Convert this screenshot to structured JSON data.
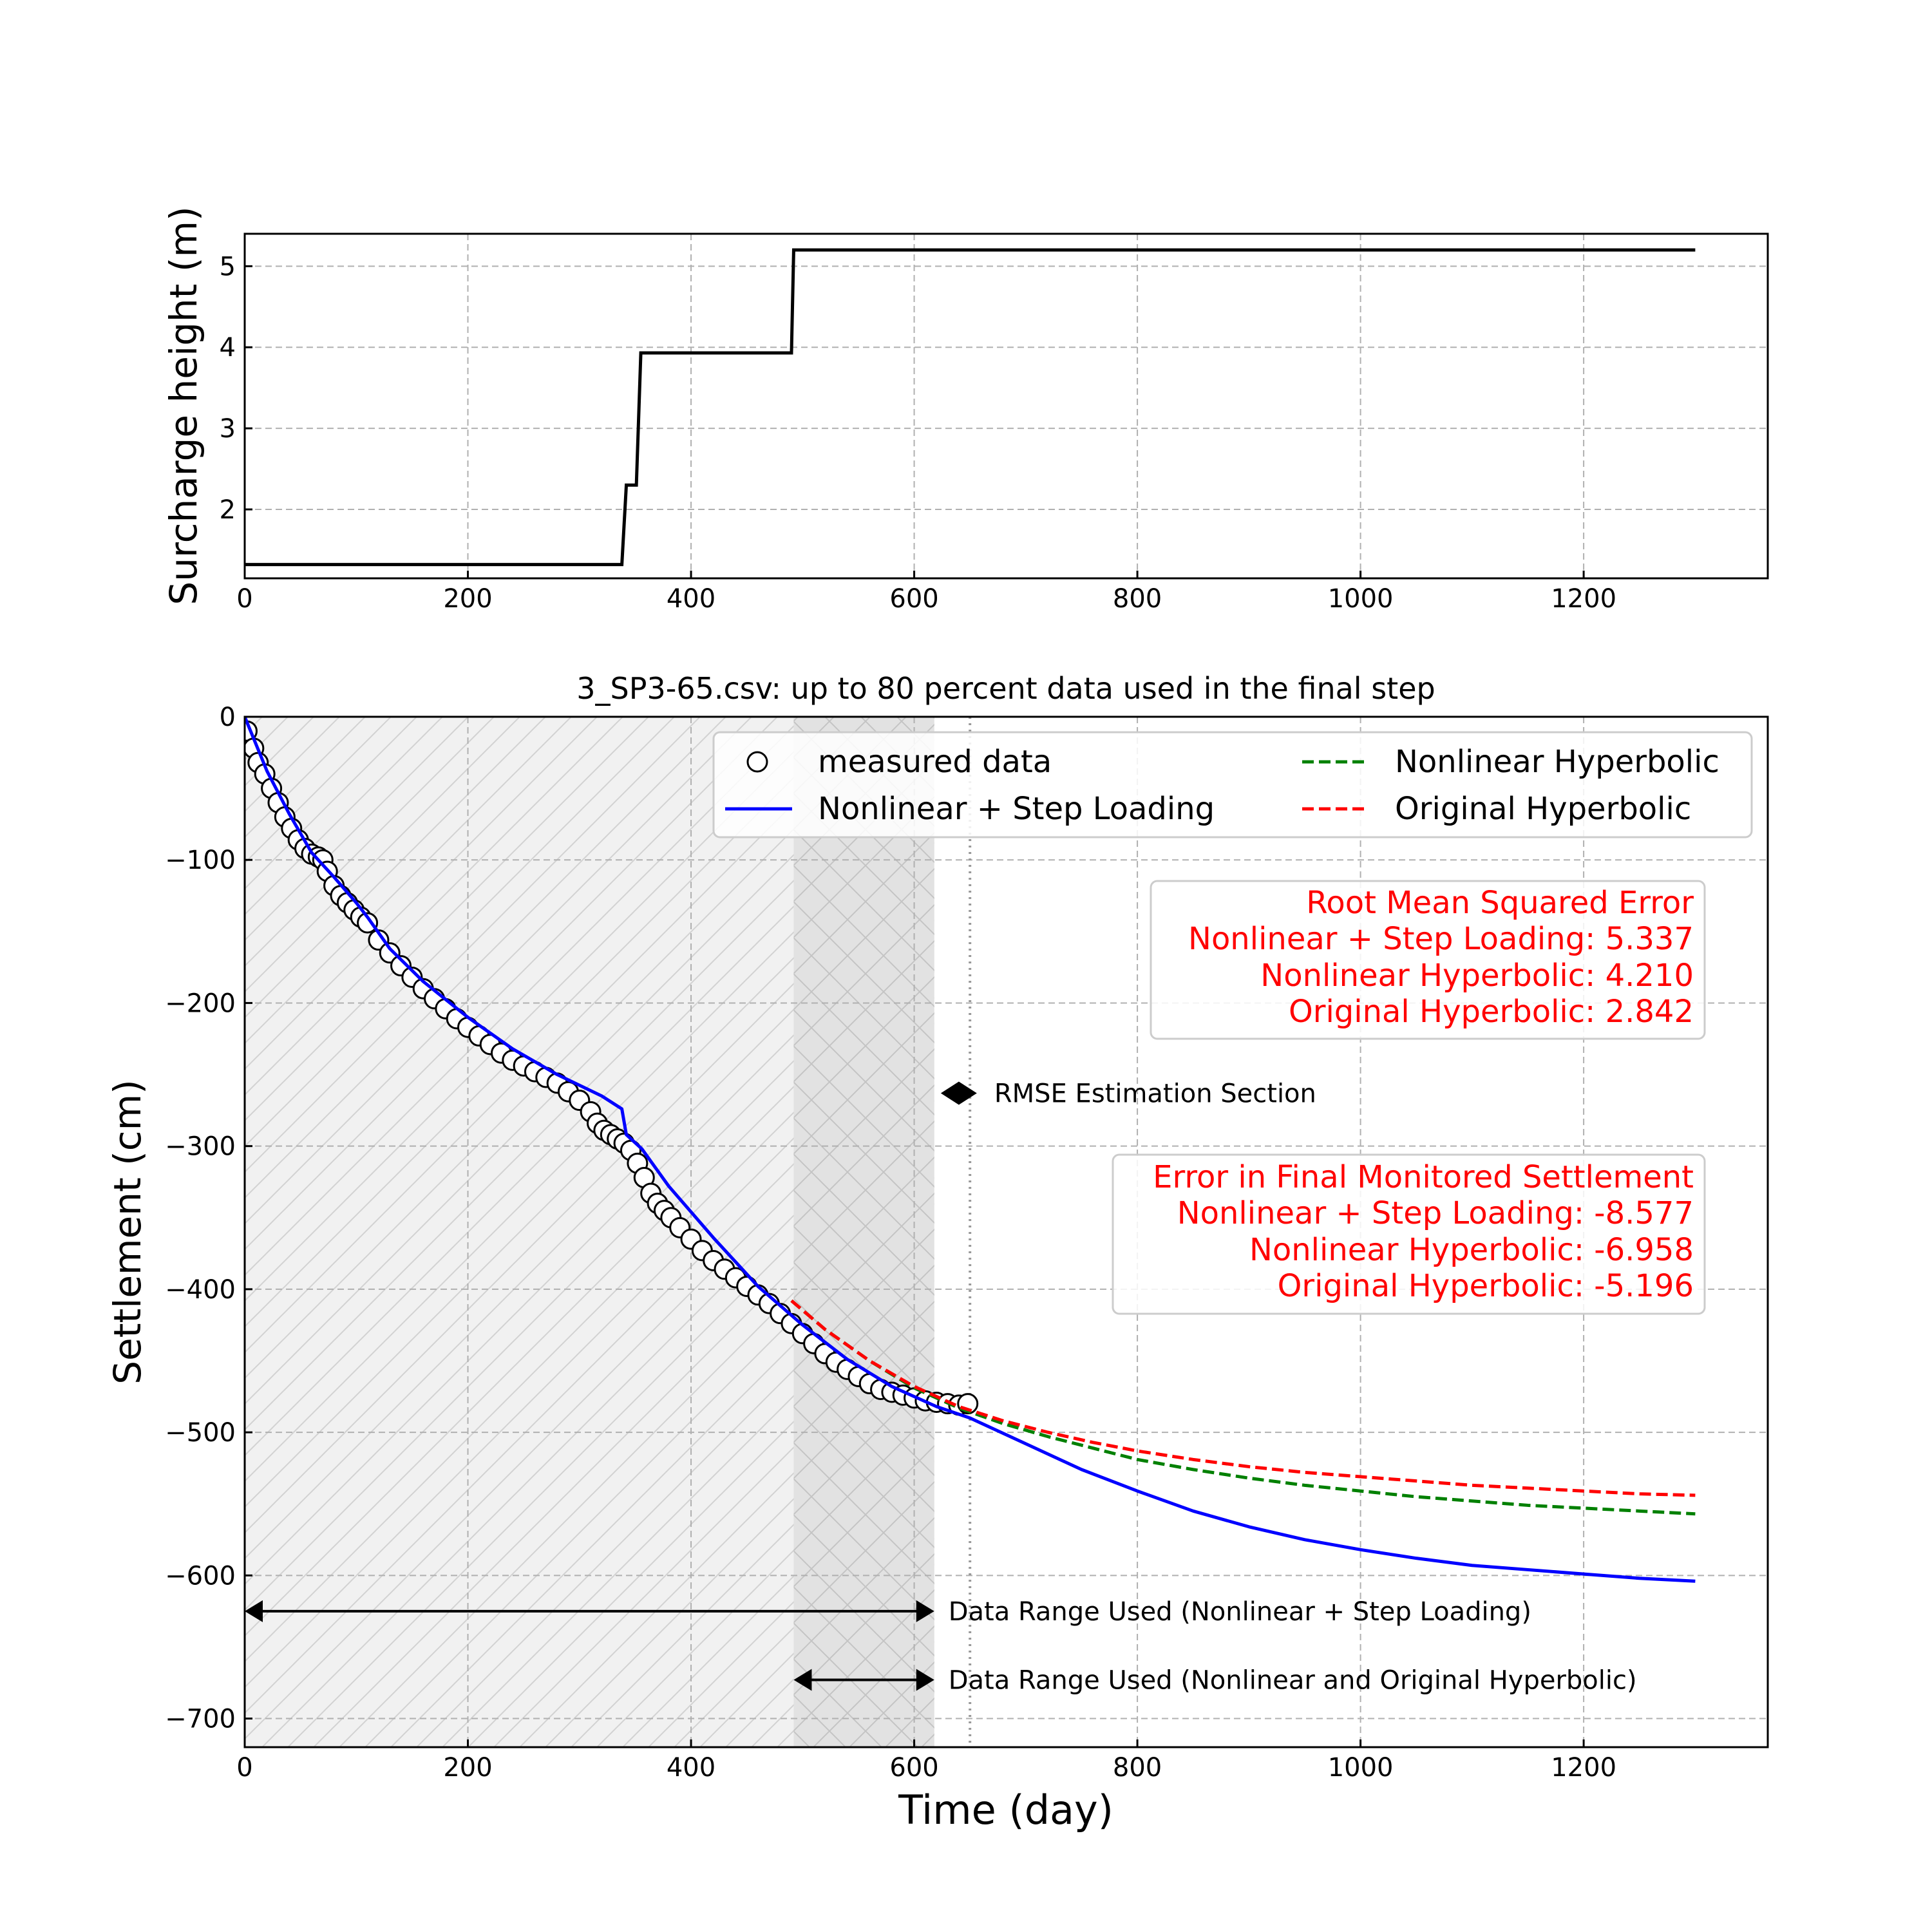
{
  "chart_data": [
    {
      "type": "line",
      "xlabel": "",
      "ylabel": "Surcharge height (m)",
      "xlim": [
        0,
        1365
      ],
      "ylim": [
        1.15,
        5.4
      ],
      "x_ticks": [
        0,
        200,
        400,
        600,
        800,
        1000,
        1200
      ],
      "y_ticks": [
        2,
        3,
        4,
        5
      ],
      "grid": true,
      "series": [
        {
          "color": "#000000",
          "x": [
            0,
            338,
            342,
            351,
            355,
            490,
            492,
            1300
          ],
          "y": [
            1.32,
            1.32,
            2.3,
            2.3,
            3.93,
            3.93,
            5.2,
            5.2
          ]
        }
      ]
    },
    {
      "type": "line",
      "title": "3_SP3-65.csv: up to 80 percent data used in the final step",
      "xlabel": "Time (day)",
      "ylabel": "Settlement (cm)",
      "xlim": [
        0,
        1365
      ],
      "ylim": [
        -720,
        0
      ],
      "x_ticks": [
        0,
        200,
        400,
        600,
        800,
        1000,
        1200
      ],
      "y_ticks": [
        0,
        -100,
        -200,
        -300,
        -400,
        -500,
        -600,
        -700
      ],
      "grid": true,
      "legend_position": "top-right",
      "legend": [
        {
          "label": "measured data",
          "kind": "marker"
        },
        {
          "label": "Nonlinear Hyperbolic",
          "kind": "dashed",
          "color": "#008000"
        },
        {
          "label": "Nonlinear + Step Loading",
          "kind": "solid",
          "color": "#0000ff"
        },
        {
          "label": "Original Hyperbolic",
          "kind": "dashed",
          "color": "#ff0000"
        }
      ],
      "measured_data": {
        "x": [
          2,
          8,
          12,
          18,
          24,
          30,
          36,
          42,
          48,
          54,
          60,
          66,
          70,
          74,
          80,
          86,
          92,
          98,
          104,
          110,
          120,
          130,
          140,
          150,
          160,
          170,
          180,
          190,
          200,
          210,
          220,
          230,
          240,
          250,
          260,
          270,
          280,
          290,
          300,
          310,
          316,
          322,
          328,
          334,
          340,
          346,
          352,
          358,
          364,
          370,
          376,
          382,
          390,
          400,
          410,
          420,
          430,
          440,
          450,
          460,
          470,
          480,
          490,
          500,
          510,
          520,
          530,
          540,
          550,
          560,
          570,
          580,
          590,
          600,
          610,
          620,
          630,
          640,
          648
        ],
        "y": [
          -10,
          -22,
          -32,
          -40,
          -50,
          -60,
          -70,
          -78,
          -86,
          -92,
          -96,
          -98,
          -100,
          -108,
          -118,
          -125,
          -130,
          -135,
          -140,
          -144,
          -156,
          -165,
          -174,
          -182,
          -190,
          -197,
          -204,
          -211,
          -217,
          -223,
          -229,
          -235,
          -240,
          -244,
          -248,
          -252,
          -256,
          -262,
          -268,
          -276,
          -284,
          -289,
          -292,
          -295,
          -298,
          -303,
          -312,
          -322,
          -333,
          -340,
          -345,
          -350,
          -357,
          -365,
          -373,
          -380,
          -386,
          -392,
          -398,
          -404,
          -410,
          -417,
          -424,
          -431,
          -438,
          -445,
          -451,
          -456,
          -461,
          -466,
          -470,
          -472,
          -474,
          -476,
          -478,
          -479,
          -480,
          -481,
          -480
        ]
      },
      "series": [
        {
          "name": "Nonlinear + Step Loading",
          "color": "#0000ff",
          "style": "solid",
          "x": [
            0,
            20,
            40,
            60,
            80,
            100,
            110,
            130,
            160,
            200,
            240,
            280,
            320,
            338,
            342,
            356,
            380,
            420,
            460,
            500,
            540,
            580,
            620,
            650,
            700,
            750,
            800,
            850,
            900,
            950,
            1000,
            1050,
            1100,
            1150,
            1200,
            1250,
            1300
          ],
          "y": [
            0,
            -38,
            -68,
            -95,
            -112,
            -130,
            -140,
            -162,
            -185,
            -210,
            -232,
            -250,
            -265,
            -274,
            -292,
            -302,
            -328,
            -364,
            -398,
            -425,
            -449,
            -468,
            -482,
            -490,
            -508,
            -526,
            -541,
            -555,
            -566,
            -575,
            -582,
            -588,
            -593,
            -596,
            -599,
            -602,
            -604
          ]
        },
        {
          "name": "Nonlinear Hyperbolic",
          "color": "#008000",
          "style": "dashed",
          "x": [
            490,
            520,
            560,
            600,
            640,
            680,
            720,
            760,
            800,
            850,
            900,
            950,
            1000,
            1050,
            1100,
            1150,
            1200,
            1250,
            1300
          ],
          "y": [
            -408,
            -428,
            -450,
            -469,
            -483,
            -494,
            -503,
            -511,
            -519,
            -526,
            -532,
            -537,
            -541,
            -545,
            -548,
            -551,
            -553,
            -555,
            -557
          ]
        },
        {
          "name": "Original Hyperbolic",
          "color": "#ff0000",
          "style": "dashed",
          "x": [
            490,
            520,
            560,
            600,
            640,
            680,
            720,
            760,
            800,
            850,
            900,
            950,
            1000,
            1050,
            1100,
            1150,
            1200,
            1250,
            1300
          ],
          "y": [
            -408,
            -428,
            -450,
            -468,
            -482,
            -492,
            -500,
            -507,
            -513,
            -519,
            -524,
            -528,
            -531,
            -534,
            -537,
            -539,
            -541,
            -543,
            -544
          ]
        }
      ],
      "shaded_regions": [
        {
          "x0": 0,
          "x1": 618,
          "style": "hatch-diagonal-light"
        },
        {
          "x0": 492,
          "x1": 618,
          "style": "hatch-cross-dark"
        }
      ],
      "vertical_line": {
        "x": 650,
        "style": "dotted"
      },
      "annotations": [
        {
          "text": "RMSE Estimation Section",
          "x": 640,
          "y": -263
        },
        {
          "text": "Data Range Used (Nonlinear + Step Loading)",
          "x0": 0,
          "x1": 618,
          "y": -625
        },
        {
          "text": "Data Range Used (Nonlinear and Original Hyperbolic)",
          "x0": 492,
          "x1": 618,
          "y": -673
        }
      ],
      "text_boxes": [
        {
          "color": "#ff0000",
          "lines": [
            "Root Mean Squared Error",
            "Nonlinear + Step Loading: 5.337",
            "Nonlinear Hyperbolic: 4.210",
            "Original Hyperbolic: 2.842"
          ]
        },
        {
          "color": "#ff0000",
          "lines": [
            "Error in Final Monitored Settlement",
            "Nonlinear + Step Loading: -8.577",
            "Nonlinear Hyperbolic: -6.958",
            "Original Hyperbolic: -5.196"
          ]
        }
      ]
    }
  ]
}
